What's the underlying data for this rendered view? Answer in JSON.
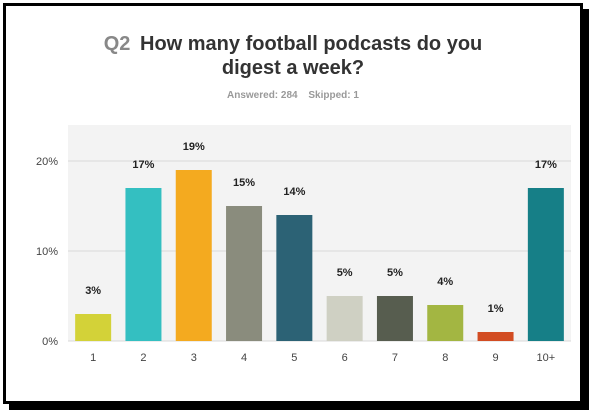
{
  "question": {
    "number": "Q2",
    "text_line1": "How many football podcasts do you",
    "text_line2": "digest a week?"
  },
  "stats": {
    "answered": "Answered: 284",
    "skipped": "Skipped: 1"
  },
  "chart_data": {
    "type": "bar",
    "categories": [
      "1",
      "2",
      "3",
      "4",
      "5",
      "6",
      "7",
      "8",
      "9",
      "10+"
    ],
    "values": [
      3,
      17,
      19,
      15,
      14,
      5,
      5,
      4,
      1,
      17
    ],
    "data_labels": [
      "3%",
      "17%",
      "19%",
      "15%",
      "14%",
      "5%",
      "5%",
      "4%",
      "1%",
      "17%"
    ],
    "colors": [
      "#d3d238",
      "#34bfc1",
      "#f4aa1f",
      "#8a8c7d",
      "#2c6275",
      "#cfd0c3",
      "#575d4f",
      "#a3b642",
      "#d24c22",
      "#167f87"
    ],
    "yticks": [
      0,
      10,
      20
    ],
    "ytick_labels": [
      "0%",
      "10%",
      "20%"
    ],
    "ylim": [
      0,
      24
    ],
    "grid": true,
    "xlabel": "",
    "ylabel": ""
  }
}
